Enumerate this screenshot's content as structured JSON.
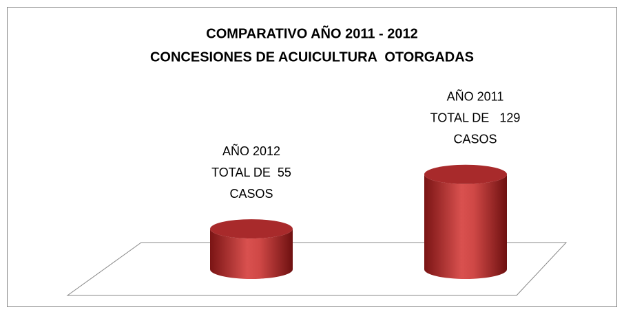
{
  "chart_data": {
    "type": "cylinder",
    "title": [
      "COMPARATIVO AÑO 2011 - 2012",
      "CONCESIONES DE ACUICULTURA  OTORGADAS"
    ],
    "values": [
      55,
      129
    ],
    "value_labels": [
      [
        "AÑO 2012",
        "TOTAL DE  55",
        "CASOS"
      ],
      [
        "AÑO 2011",
        "TOTAL DE   129",
        "CASOS"
      ]
    ],
    "color": "#c0393b",
    "ylim": [
      0,
      140
    ]
  }
}
